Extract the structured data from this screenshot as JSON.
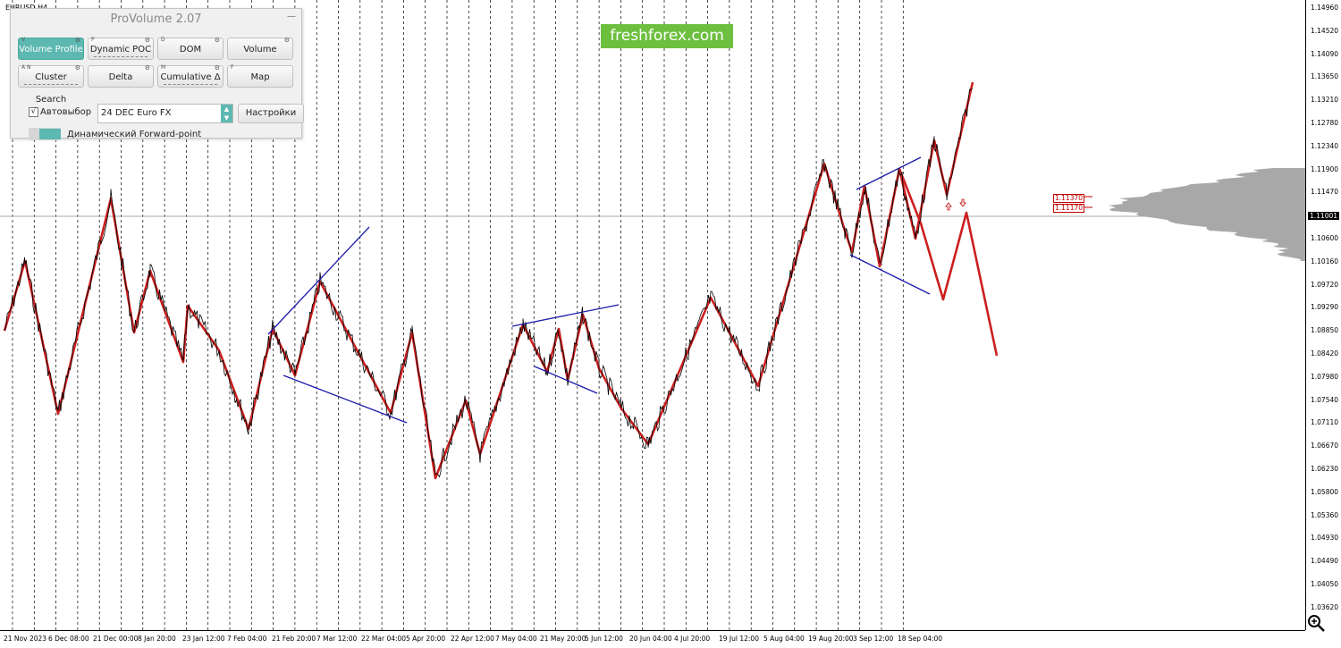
{
  "symbol": {
    "label": "EURUSD,H4"
  },
  "price_axis": {
    "labels": [
      "1.14960",
      "1.14520",
      "1.14090",
      "1.13650",
      "1.13210",
      "1.12780",
      "1.12340",
      "1.11900",
      "1.11470",
      "1.10600",
      "1.10160",
      "1.09720",
      "1.09290",
      "1.08850",
      "1.08420",
      "1.07980",
      "1.07540",
      "1.07110",
      "1.06670",
      "1.06230",
      "1.05800",
      "1.05360",
      "1.04930",
      "1.04490",
      "1.04050",
      "1.03620"
    ],
    "current_price": "1.11001"
  },
  "time_axis": {
    "labels": [
      "21 Nov 2023",
      "6 Dec 08:00",
      "21 Dec 00:00",
      "8 Jan 20:00",
      "23 Jan 12:00",
      "7 Feb 04:00",
      "21 Feb 20:00",
      "7 Mar 12:00",
      "22 Mar 04:00",
      "5 Apr 20:00",
      "22 Apr 12:00",
      "7 May 04:00",
      "21 May 20:00",
      "5 Jun 12:00",
      "20 Jun 04:00",
      "4 Jul 20:00",
      "19 Jul 12:00",
      "5 Aug 04:00",
      "19 Aug 20:00",
      "3 Sep 12:00",
      "18 Sep 04:00"
    ]
  },
  "levels": {
    "upper": "1.11370",
    "lower": "1.11170"
  },
  "logo": {
    "text": "freshforex.com"
  },
  "provolume": {
    "title": "ProVolume 2.07",
    "minimize": "—",
    "buttons": [
      {
        "label": "Volume Profile",
        "hotkey": "V",
        "active": true
      },
      {
        "label": "Dynamic POC",
        "hotkey": "P",
        "active": false
      },
      {
        "label": "DOM",
        "hotkey": "D",
        "active": false
      },
      {
        "label": "Volume",
        "hotkey": "",
        "active": false
      },
      {
        "label": "Cluster Search",
        "hotkey": "A  N",
        "active": false
      },
      {
        "label": "Delta",
        "hotkey": "",
        "active": false
      },
      {
        "label": "Cumulative Δ",
        "hotkey": "M",
        "active": false
      },
      {
        "label": "Map",
        "hotkey": "F",
        "active": false
      }
    ],
    "autoselect_label": "Автовыбор",
    "autoselect_checked": "√",
    "instrument": "24 DEC Euro FX",
    "settings_label": "Настройки",
    "forward_label": "Динамический Forward-point"
  },
  "colors": {
    "zigzag": "#cc1f1f",
    "trendline": "#1a1aa8",
    "accent": "#5cb8b0",
    "logo_bg": "#6dbf3f"
  },
  "icons": {
    "gear": "gear-icon",
    "zoom": "zoom-icon"
  }
}
